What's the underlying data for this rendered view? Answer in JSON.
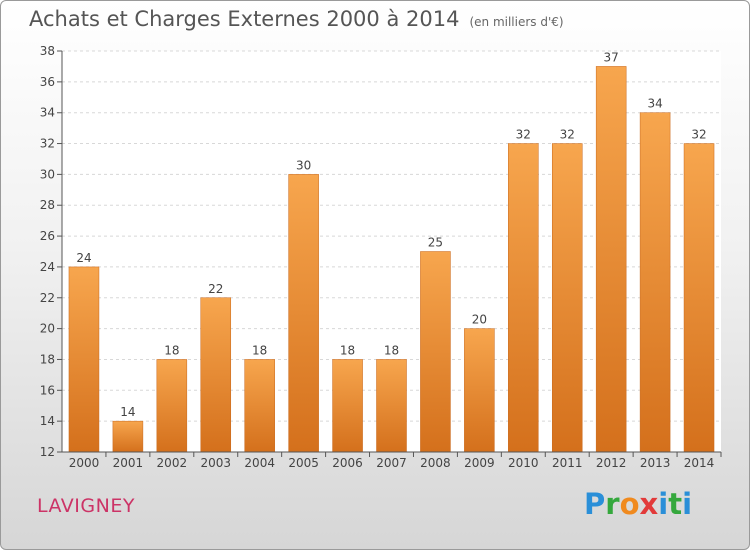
{
  "chart_data": {
    "type": "bar",
    "title": "Achats et Charges Externes 2000 à 2014",
    "subtitle": "(en milliers d'€)",
    "categories": [
      "2000",
      "2001",
      "2002",
      "2003",
      "2004",
      "2005",
      "2006",
      "2007",
      "2008",
      "2009",
      "2010",
      "2011",
      "2012",
      "2013",
      "2014"
    ],
    "values": [
      24,
      14,
      18,
      22,
      18,
      30,
      18,
      18,
      25,
      20,
      32,
      32,
      37,
      34,
      32
    ],
    "ylim": [
      12,
      38
    ],
    "yticks": [
      12,
      14,
      16,
      18,
      20,
      22,
      24,
      26,
      28,
      30,
      32,
      34,
      36,
      38
    ],
    "grid": true,
    "bar_color_top": "#f7a64e",
    "bar_color_bottom": "#d4701c"
  },
  "footer": {
    "location": "LAVIGNEY",
    "brand_letters": [
      "P",
      "r",
      "o",
      "x",
      "i",
      "t",
      "i"
    ]
  }
}
